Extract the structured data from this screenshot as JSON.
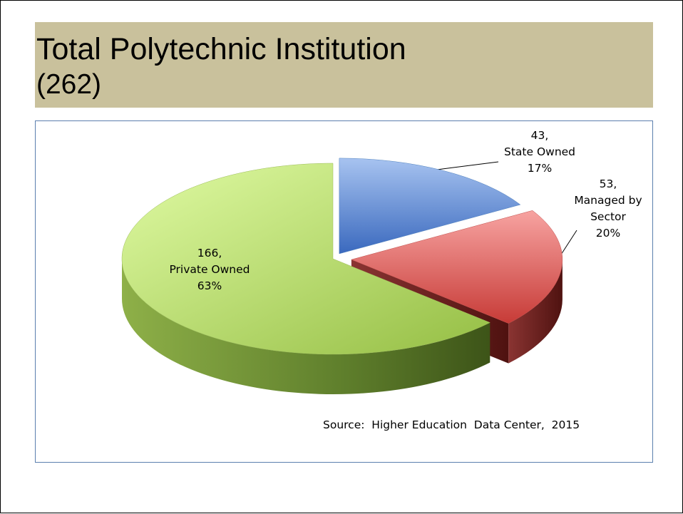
{
  "title": "Total Polytechnic Institution",
  "subtitle": "(262)",
  "chart_data": {
    "type": "pie",
    "categories": [
      "State Owned",
      "Managed by Sector",
      "Private Owned"
    ],
    "values": [
      43,
      53,
      166
    ],
    "value_labels": [
      "43,",
      "53,",
      "166,"
    ],
    "percent_labels": [
      "17%",
      "20%",
      "63%"
    ],
    "colors": [
      "#4f81bd",
      "#c0504d",
      "#9bbb59"
    ],
    "source": "Source:  Higher Education  Data Center,  2015"
  }
}
